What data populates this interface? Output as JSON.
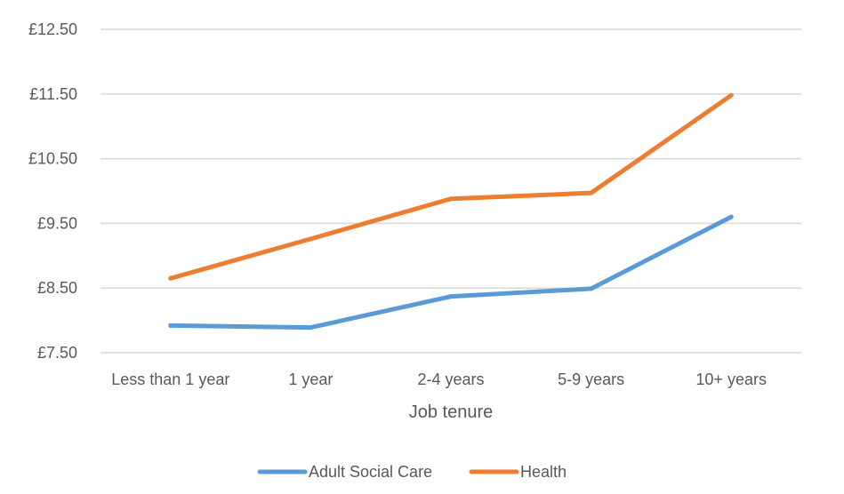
{
  "chart_data": {
    "type": "line",
    "title": "",
    "xlabel": "Job tenure",
    "ylabel": "",
    "categories": [
      "Less than 1 year",
      "1 year",
      "2-4 years",
      "5-9 years",
      "10+ years"
    ],
    "ylim": [
      7.5,
      12.5
    ],
    "yticks": [
      7.5,
      8.5,
      9.5,
      10.5,
      11.5,
      12.5
    ],
    "ytick_labels": [
      "£7.50",
      "£8.50",
      "£9.50",
      "£10.50",
      "£11.50",
      "£12.50"
    ],
    "grid": true,
    "legend_position": "bottom",
    "series": [
      {
        "name": "Adult Social Care",
        "color": "#5b9bd5",
        "values": [
          7.92,
          7.89,
          8.37,
          8.49,
          9.6
        ]
      },
      {
        "name": "Health",
        "color": "#ed7d31",
        "values": [
          8.65,
          9.26,
          9.88,
          9.97,
          11.48
        ]
      }
    ]
  }
}
